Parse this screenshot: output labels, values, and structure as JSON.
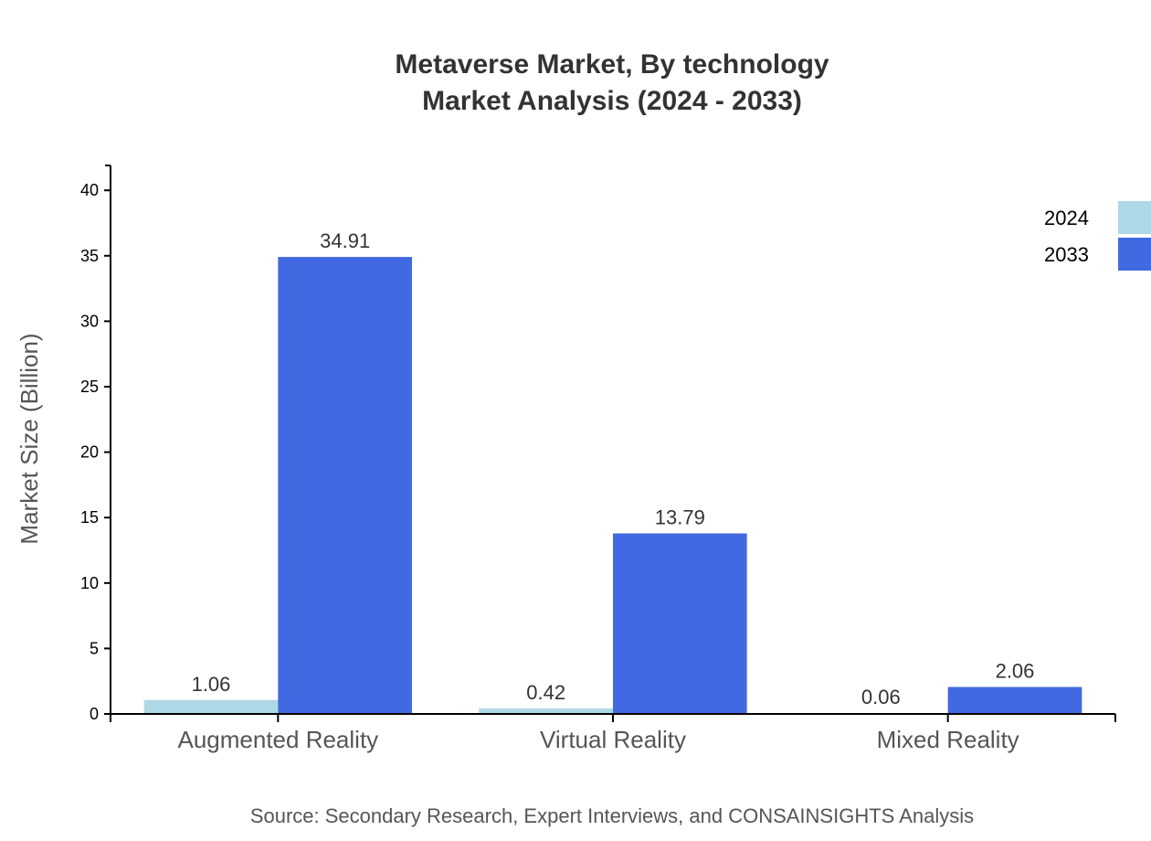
{
  "chart_data": {
    "type": "bar",
    "title": "Metaverse Market, By technology",
    "subtitle": "Market Analysis (2024 - 2033)",
    "xlabel": "",
    "ylabel": "Market Size (Billion)",
    "categories": [
      "Augmented Reality",
      "Virtual Reality",
      "Mixed Reality"
    ],
    "series": [
      {
        "name": "2024",
        "color": "#ADD8E6",
        "values": [
          1.06,
          0.42,
          0.06
        ]
      },
      {
        "name": "2033",
        "color": "#4169E1",
        "values": [
          34.91,
          13.79,
          2.06
        ]
      }
    ],
    "ylim": [
      0,
      41.9
    ],
    "yticks": [
      0,
      5,
      10,
      15,
      20,
      25,
      30,
      35,
      40
    ],
    "grid": false,
    "legend": "top-right",
    "source": "Source: Secondary Research, Expert Interviews, and CONSAINSIGHTS Analysis"
  }
}
